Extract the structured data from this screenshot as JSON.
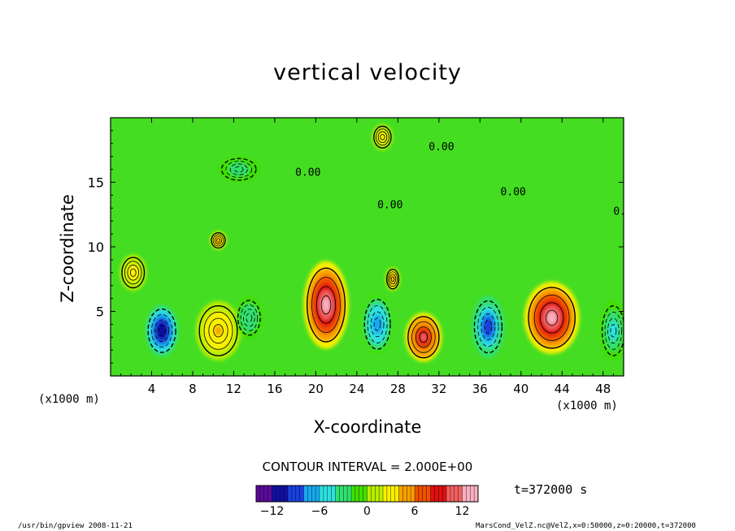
{
  "chart_data": {
    "type": "heatmap",
    "title": "vertical velocity",
    "xlabel": "X-coordinate",
    "ylabel": "Z-coordinate",
    "x_unit": "(x1000 m)",
    "x_ticks": [
      4,
      8,
      12,
      16,
      20,
      24,
      28,
      32,
      36,
      40,
      44,
      48
    ],
    "y_ticks": [
      5,
      10,
      15
    ],
    "xlim": [
      0,
      50
    ],
    "ylim": [
      0,
      20
    ],
    "contour_interval_label": "CONTOUR INTERVAL = 2.000E+00",
    "contour_label": "0.00",
    "colorbar": {
      "range": [
        -14,
        14
      ],
      "ticks": [
        -12,
        -6,
        0,
        6,
        12
      ],
      "tick_labels": [
        "−12",
        "−6",
        "0",
        "6",
        "12"
      ],
      "colors": [
        "#5a0a9a",
        "#1010a0",
        "#1a40e0",
        "#18a8f0",
        "#2ee0e0",
        "#30e070",
        "#40e000",
        "#b8ee00",
        "#f8f000",
        "#f8a000",
        "#f05000",
        "#e01010",
        "#f06060",
        "#f8b0c0"
      ]
    },
    "cells": [
      {
        "x": 5.0,
        "z": 3.5,
        "value": -12,
        "sx": 1.6,
        "sz": 2.0
      },
      {
        "x": 10.5,
        "z": 3.5,
        "value": 4,
        "sx": 2.2,
        "sz": 2.3
      },
      {
        "x": 13.5,
        "z": 4.5,
        "value": -4,
        "sx": 1.3,
        "sz": 1.6
      },
      {
        "x": 21.0,
        "z": 5.5,
        "value": 13,
        "sx": 2.2,
        "sz": 3.4
      },
      {
        "x": 26.0,
        "z": 4.0,
        "value": -8,
        "sx": 1.5,
        "sz": 2.3
      },
      {
        "x": 30.5,
        "z": 3.0,
        "value": 10,
        "sx": 1.8,
        "sz": 1.9
      },
      {
        "x": 36.8,
        "z": 3.8,
        "value": -10,
        "sx": 1.6,
        "sz": 2.4
      },
      {
        "x": 43.0,
        "z": 4.5,
        "value": 12,
        "sx": 2.7,
        "sz": 2.8
      },
      {
        "x": 49.0,
        "z": 3.5,
        "value": -5,
        "sx": 1.3,
        "sz": 2.3
      },
      {
        "x": 2.2,
        "z": 8.0,
        "value": 3,
        "sx": 1.3,
        "sz": 1.4
      },
      {
        "x": 10.5,
        "z": 10.5,
        "value": 5,
        "sx": 0.8,
        "sz": 0.7
      },
      {
        "x": 27.5,
        "z": 7.5,
        "value": 5,
        "sx": 0.7,
        "sz": 0.9
      },
      {
        "x": 12.5,
        "z": 16.0,
        "value": -3,
        "sx": 2.0,
        "sz": 1.0
      },
      {
        "x": 26.5,
        "z": 18.5,
        "value": 3,
        "sx": 1.0,
        "sz": 1.0
      }
    ]
  },
  "time_label": "t=372000 s",
  "footer_left": "/usr/bin/gpview   2008-11-21",
  "footer_right": "MarsCond_VelZ.nc@VelZ,x=0:50000,z=0:20000,t=372000"
}
